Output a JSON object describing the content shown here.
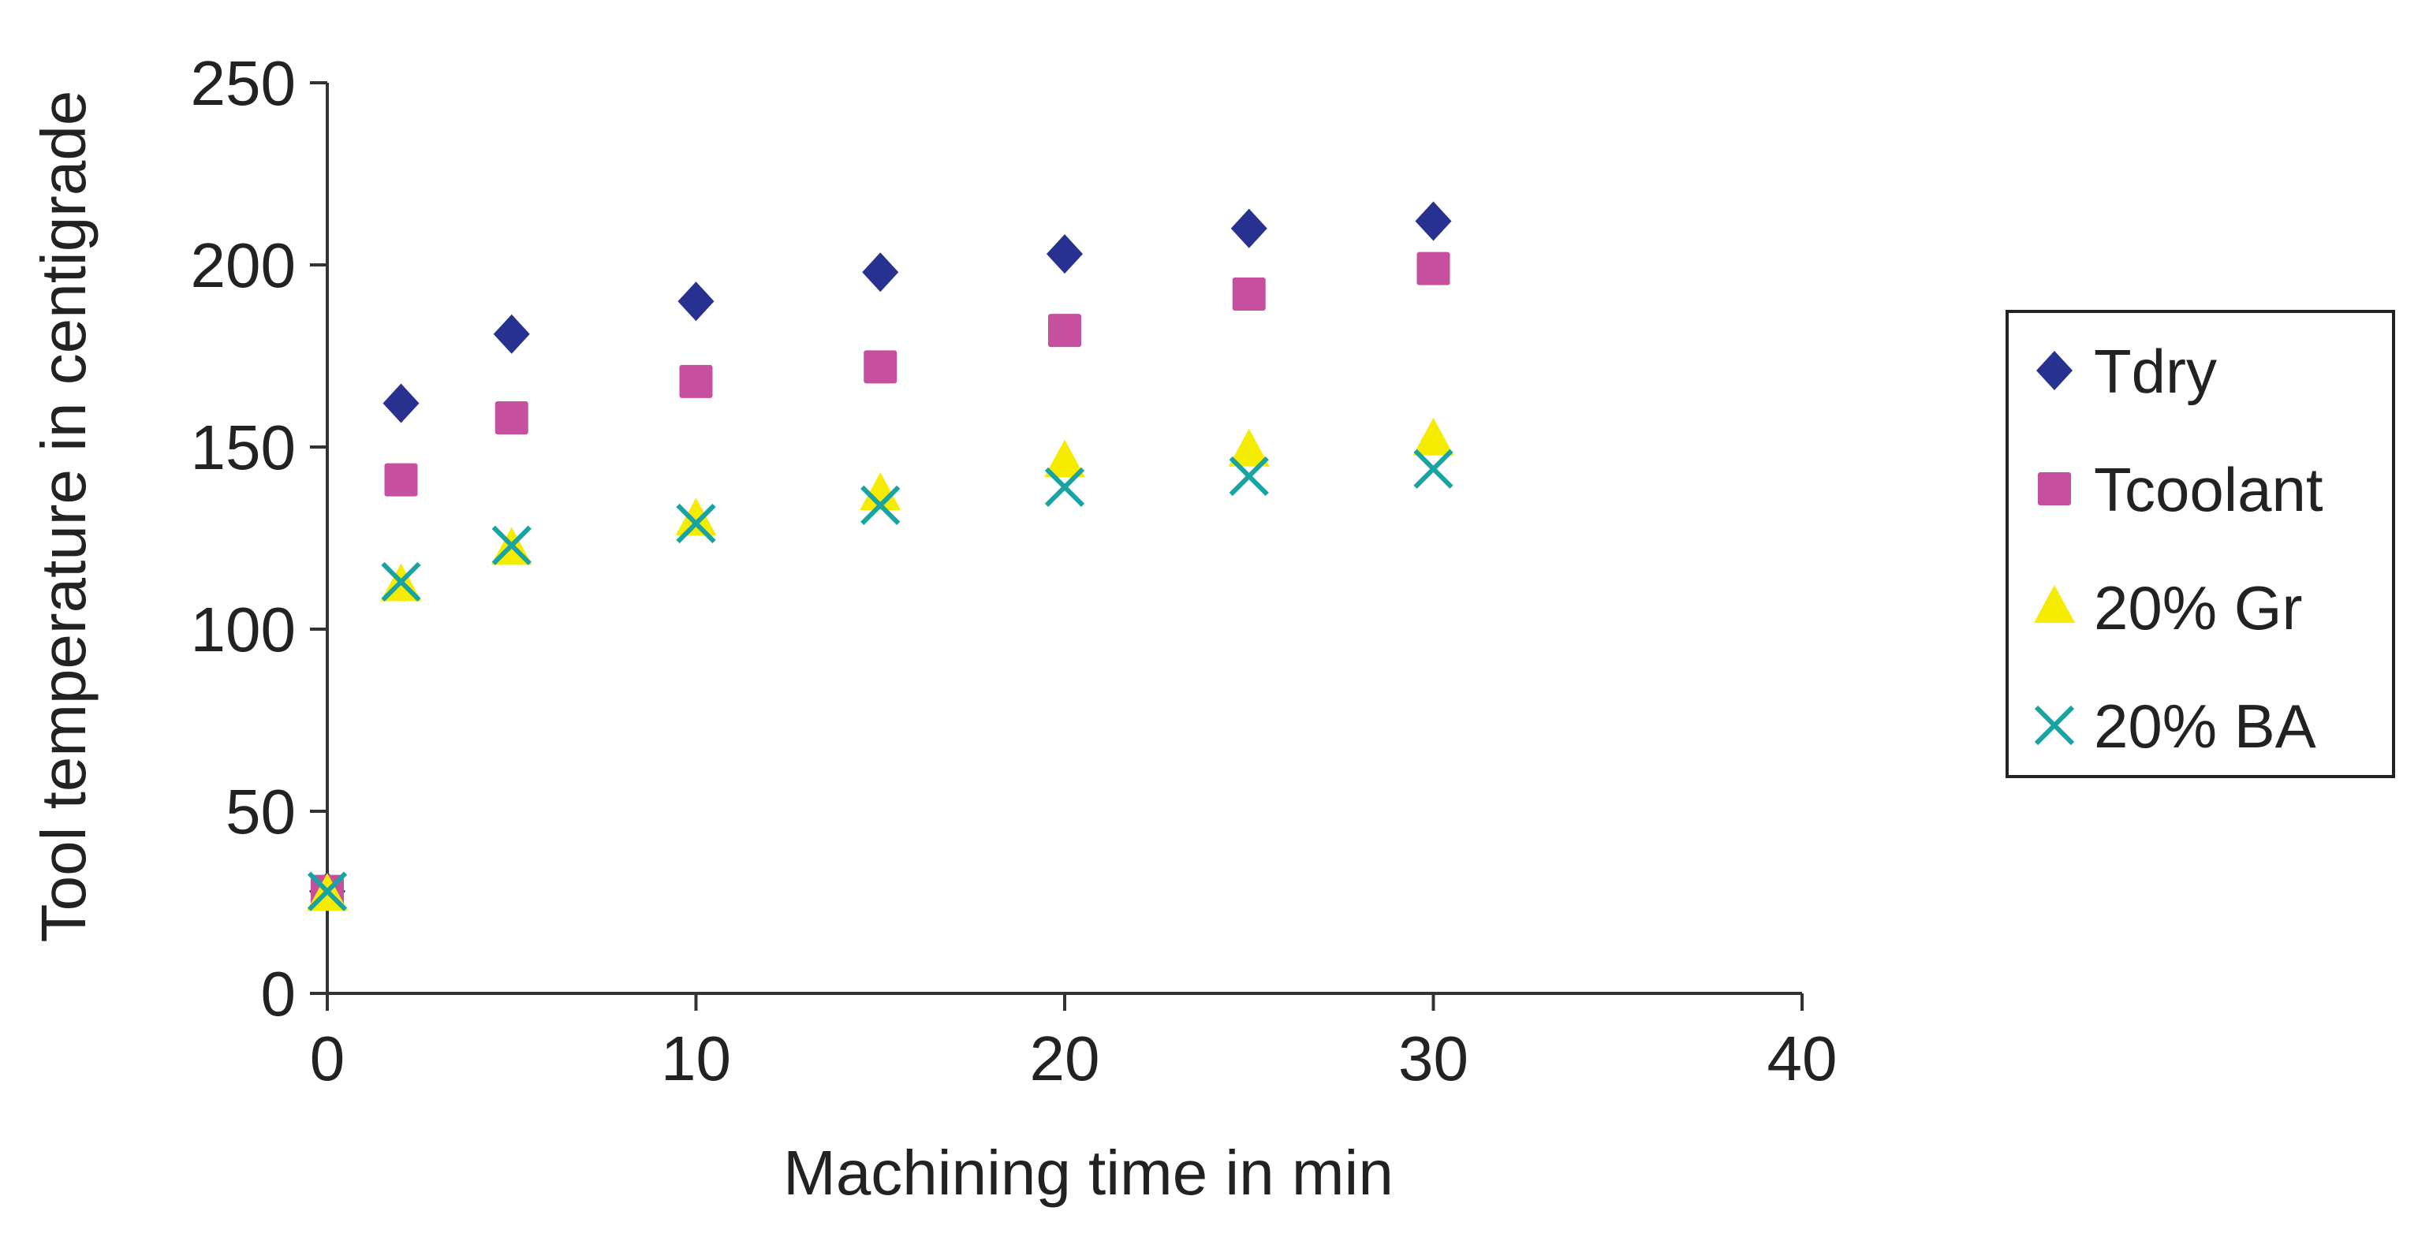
{
  "chart_data": {
    "type": "scatter",
    "title": "",
    "xlabel": "Machining time in min",
    "ylabel": "Tool temperature in centigrade",
    "xlim": [
      0,
      40
    ],
    "ylim": [
      0,
      250
    ],
    "xticks": [
      0,
      10,
      20,
      30,
      40
    ],
    "yticks": [
      0,
      50,
      100,
      150,
      200,
      250
    ],
    "grid": false,
    "legend_position": "right",
    "series": [
      {
        "name": "Tdry",
        "marker": "diamond",
        "color": "#27318f",
        "points": [
          [
            0,
            28
          ],
          [
            2,
            162
          ],
          [
            5,
            181
          ],
          [
            10,
            190
          ],
          [
            15,
            198
          ],
          [
            20,
            203
          ],
          [
            25,
            210
          ],
          [
            30,
            212
          ]
        ]
      },
      {
        "name": "Tcoolant",
        "marker": "square",
        "color": "#c7509e",
        "points": [
          [
            0,
            28
          ],
          [
            2,
            141
          ],
          [
            5,
            158
          ],
          [
            10,
            168
          ],
          [
            15,
            172
          ],
          [
            20,
            182
          ],
          [
            25,
            192
          ],
          [
            30,
            199
          ]
        ]
      },
      {
        "name": "20% Gr",
        "marker": "triangle",
        "color": "#f5ec00",
        "points": [
          [
            0,
            27
          ],
          [
            2,
            112
          ],
          [
            5,
            122
          ],
          [
            10,
            130
          ],
          [
            15,
            137
          ],
          [
            20,
            146
          ],
          [
            25,
            149
          ],
          [
            30,
            152
          ]
        ]
      },
      {
        "name": "20% BA",
        "marker": "x",
        "color": "#1aa3a3",
        "points": [
          [
            0,
            28
          ],
          [
            2,
            113
          ],
          [
            5,
            123
          ],
          [
            10,
            129
          ],
          [
            15,
            134
          ],
          [
            20,
            139
          ],
          [
            25,
            142
          ],
          [
            30,
            144
          ]
        ]
      }
    ]
  }
}
